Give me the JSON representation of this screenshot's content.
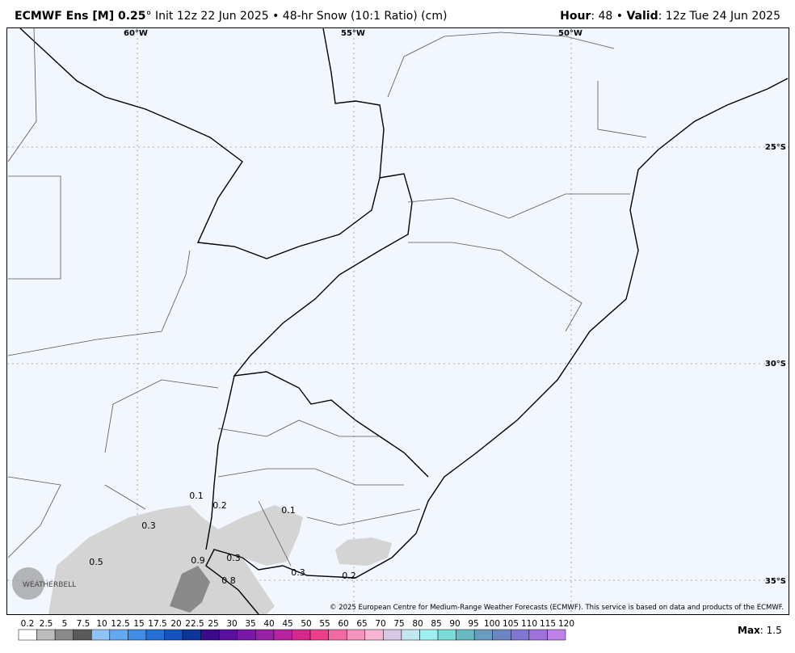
{
  "header": {
    "left": [
      {
        "text": "ECMWF Ens [M] 0.25",
        "bold": true
      },
      {
        "text": "° Init 12z 22 Jun 2025 • 48-hr Snow (10:1 Ratio) (cm)",
        "bold": false
      }
    ],
    "right": [
      {
        "text": "Hour",
        "bold": true
      },
      {
        "text": ": 48 • ",
        "bold": false
      },
      {
        "text": "Valid",
        "bold": true
      },
      {
        "text": ": 12z Tue 24 Jun 2025",
        "bold": false
      }
    ]
  },
  "map": {
    "lon_labels": [
      "60°W",
      "55°W",
      "50°W"
    ],
    "lat_labels": [
      "25°S",
      "30°S",
      "35°S"
    ],
    "contour_labels": [
      "0.1",
      "0.2",
      "0.1",
      "0.3",
      "0.5",
      "0.9",
      "0.3",
      "0.8",
      "0.3",
      "0.2"
    ],
    "logo": "WEATHERBELL",
    "copyright": "© 2025 European Centre for Medium-Range Weather Forecasts (ECMWF). This service is based on data and products of the ECMWF."
  },
  "legend": {
    "labels": [
      "0.2",
      "2.5",
      "5",
      "7.5",
      "10",
      "12.5",
      "15",
      "17.5",
      "20",
      "22.5",
      "25",
      "30",
      "35",
      "40",
      "45",
      "50",
      "55",
      "60",
      "65",
      "70",
      "75",
      "80",
      "85",
      "90",
      "95",
      "100",
      "105",
      "110",
      "115",
      "120"
    ],
    "colors": [
      "#ffffff",
      "#bdbdbd",
      "#8a8a8a",
      "#5a5a5a",
      "#8fc3f5",
      "#64a9f0",
      "#3f8de6",
      "#2470d6",
      "#1552c0",
      "#0c3599",
      "#3b0a8c",
      "#5a0f9e",
      "#7a17a8",
      "#991ea8",
      "#b8229e",
      "#d6288c",
      "#ee3d8a",
      "#f06aa3",
      "#f393be",
      "#f5b6d4",
      "#d8c8e6",
      "#c0e6f0",
      "#9ef0f0",
      "#7adcd8",
      "#6ab8c4",
      "#6a9cc0",
      "#6c86c4",
      "#8078d0",
      "#a070dc",
      "#c080ea"
    ],
    "max_label": "Max",
    "max_value": ": 1.5"
  }
}
